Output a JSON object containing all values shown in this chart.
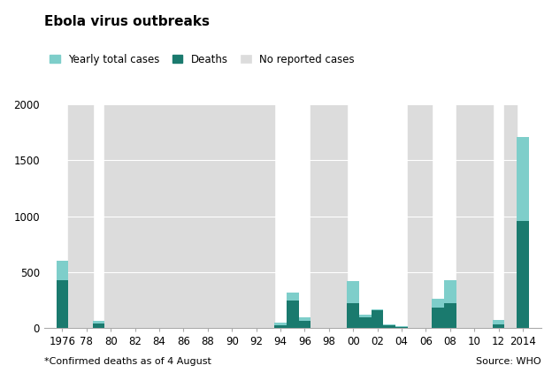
{
  "title": "Ebola virus outbreaks",
  "color_cases": "#7ececa",
  "color_deaths": "#1a7a6e",
  "color_no_report": "#dcdcdc",
  "footnote": "*Confirmed deaths as of 4 August",
  "source": "Source: WHO",
  "bars": [
    {
      "year": 1976,
      "cases": 603,
      "deaths": 431
    },
    {
      "year": 1979,
      "cases": 65,
      "deaths": 43
    },
    {
      "year": 1994,
      "cases": 49,
      "deaths": 29
    },
    {
      "year": 1995,
      "cases": 315,
      "deaths": 250
    },
    {
      "year": 1996,
      "cases": 97,
      "deaths": 66
    },
    {
      "year": 2000,
      "cases": 425,
      "deaths": 224
    },
    {
      "year": 2001,
      "cases": 123,
      "deaths": 96
    },
    {
      "year": 2002,
      "cases": 170,
      "deaths": 157
    },
    {
      "year": 2003,
      "cases": 35,
      "deaths": 29
    },
    {
      "year": 2004,
      "cases": 20,
      "deaths": 13
    },
    {
      "year": 2007,
      "cases": 264,
      "deaths": 187
    },
    {
      "year": 2008,
      "cases": 427,
      "deaths": 224
    },
    {
      "year": 2012,
      "cases": 77,
      "deaths": 36
    },
    {
      "year": 2014,
      "cases": 1711,
      "deaths": 961
    }
  ],
  "no_report_bands": [
    [
      1977,
      1978
    ],
    [
      1980,
      1993
    ],
    [
      1997,
      1999
    ],
    [
      2005,
      2006
    ],
    [
      2009,
      2011
    ],
    [
      2013,
      2013
    ]
  ],
  "ylim": [
    0,
    2000
  ],
  "yticks": [
    0,
    500,
    1000,
    1500,
    2000
  ],
  "xmin": 1974.5,
  "xmax": 2015.5,
  "xtick_vals": [
    1976,
    1978,
    1980,
    1982,
    1984,
    1986,
    1988,
    1990,
    1992,
    1994,
    1996,
    1998,
    2000,
    2002,
    2004,
    2006,
    2008,
    2010,
    2012,
    2014
  ],
  "xtick_labels": [
    "1976",
    "78",
    "80",
    "82",
    "84",
    "86",
    "88",
    "90",
    "92",
    "94",
    "96",
    "98",
    "00",
    "02",
    "04",
    "06",
    "08",
    "10",
    "12",
    "2014"
  ],
  "bar_width": 1.0
}
